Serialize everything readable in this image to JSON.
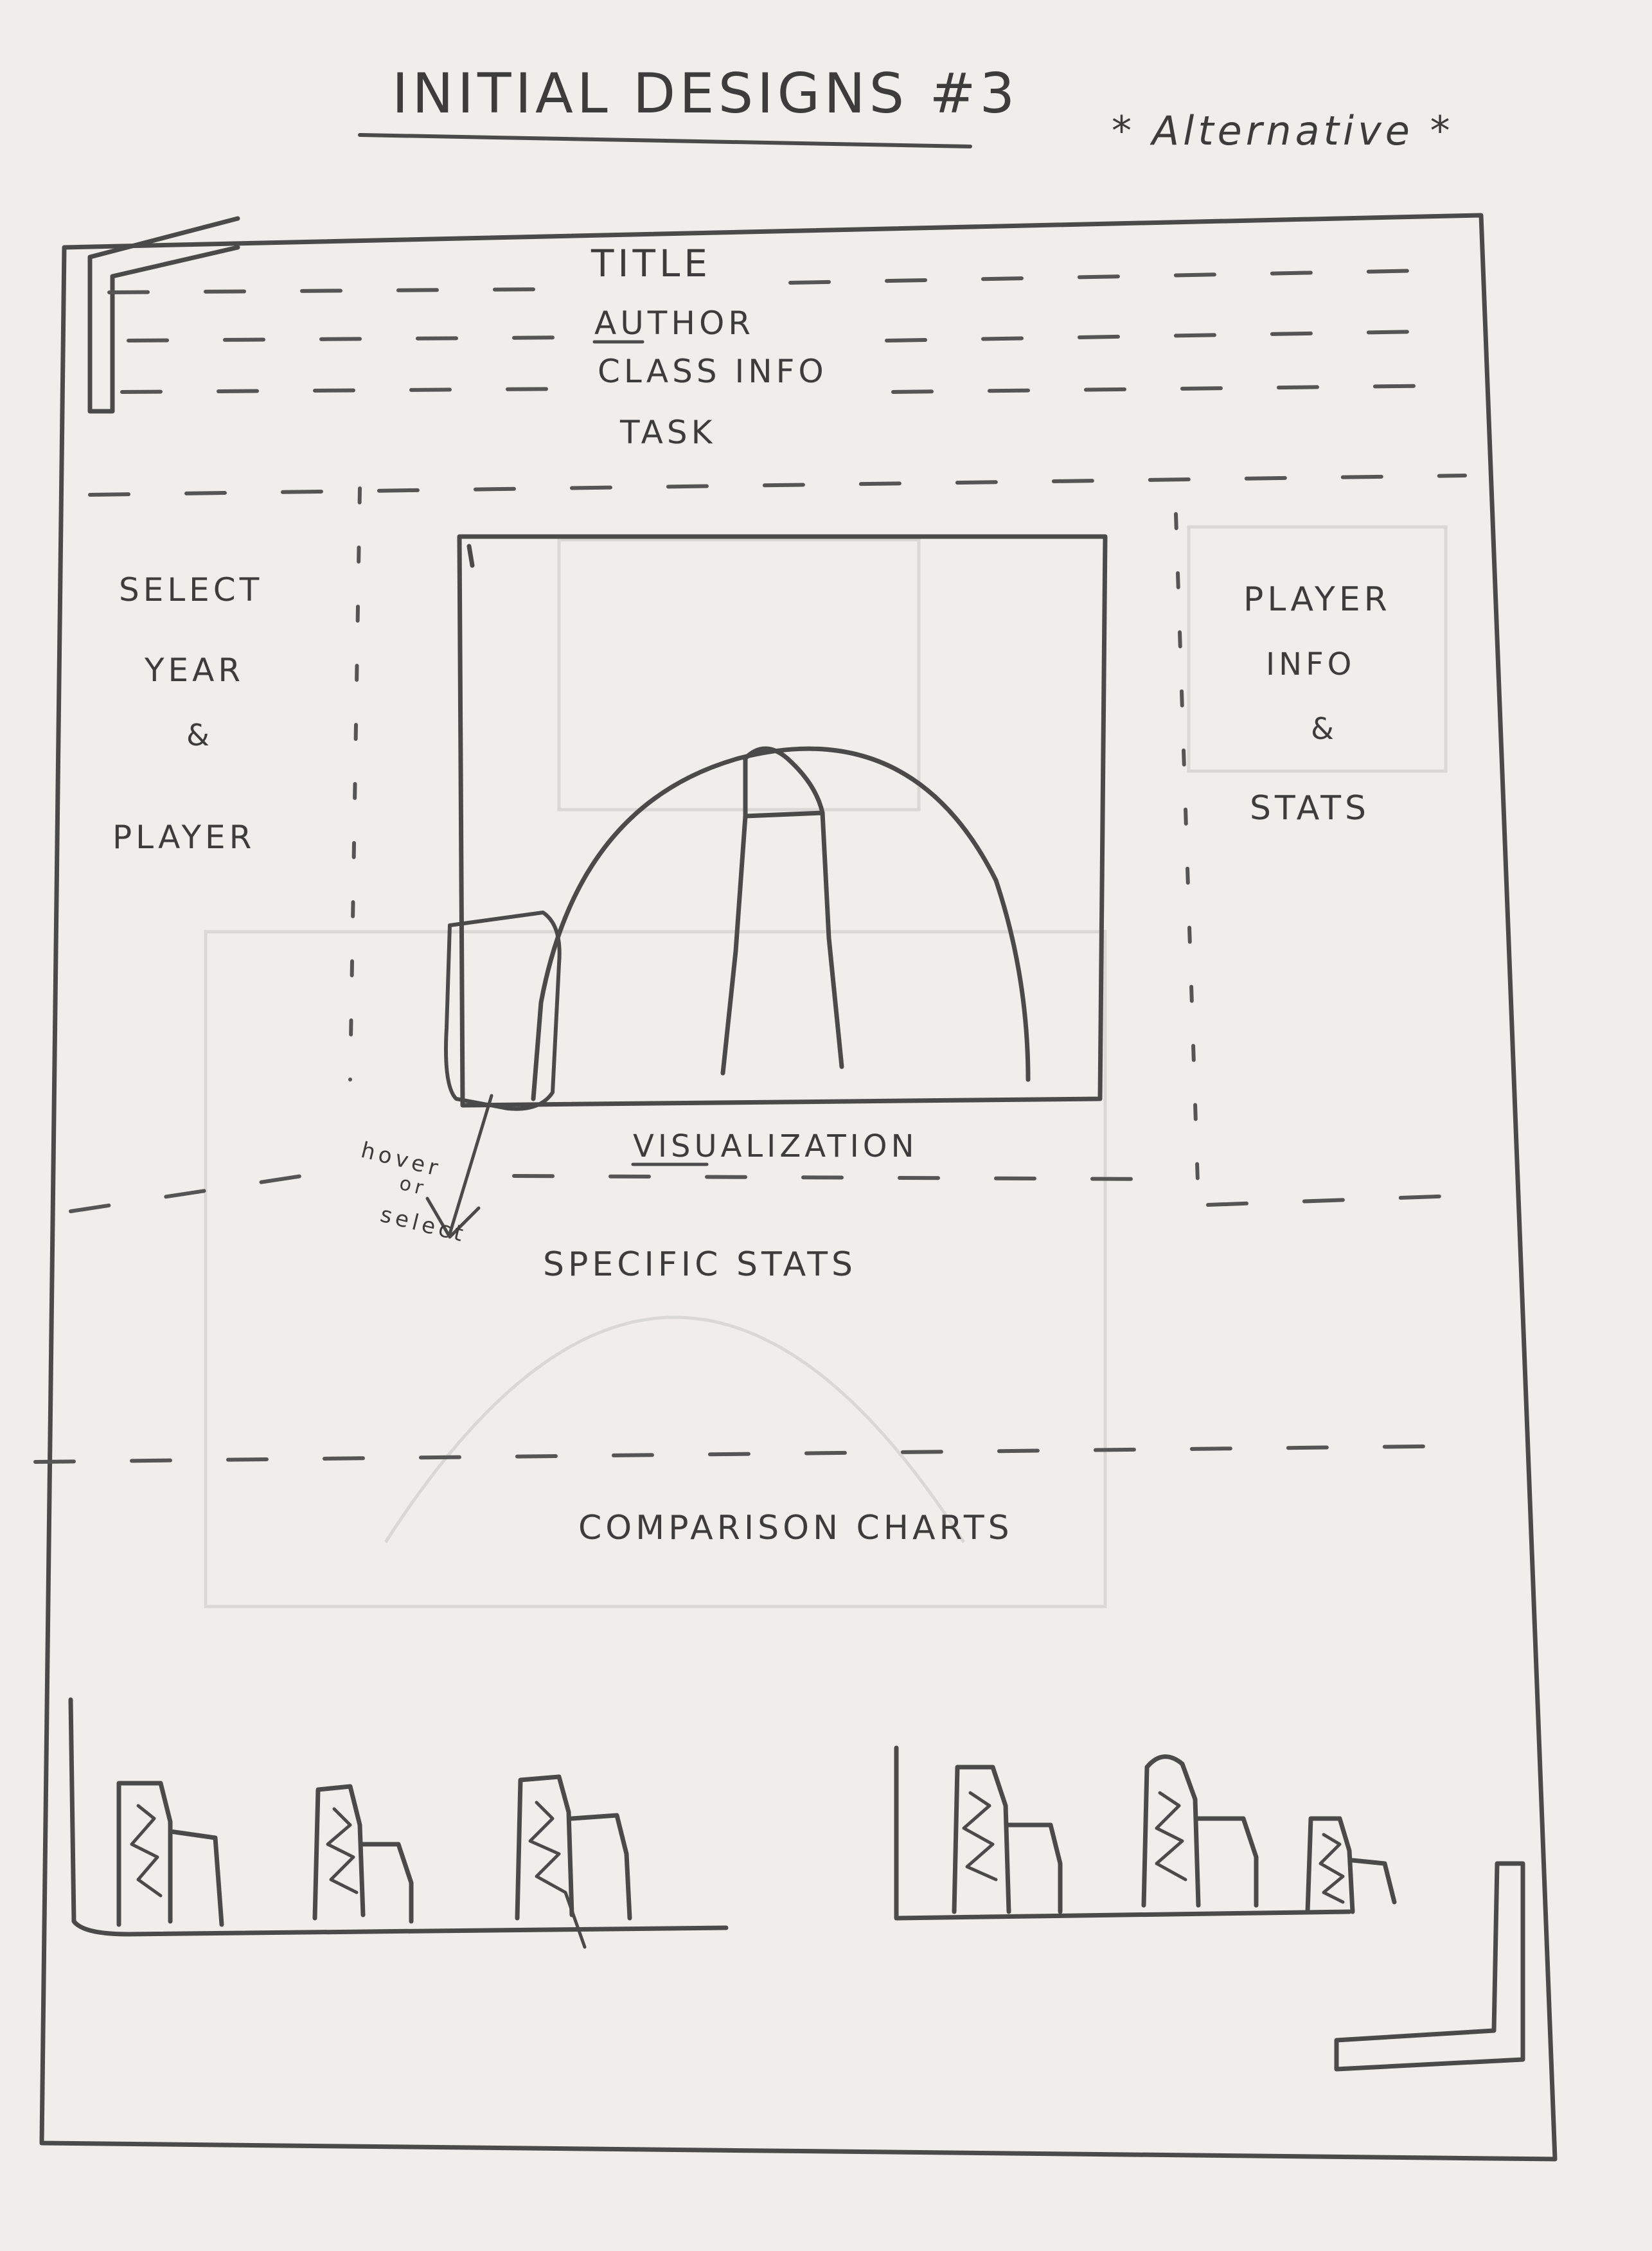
{
  "sheet": {
    "heading": "INITIAL DESIGNS #3",
    "note": "* Alternative *"
  },
  "header": {
    "title": "TITLE",
    "author": "AUTHOR",
    "class_info": "CLASS INFO",
    "task": "TASK"
  },
  "left_panel": {
    "line1": "SELECT",
    "line2": "YEAR",
    "line3": "&",
    "line4": "PLAYER"
  },
  "right_panel": {
    "line1": "PLAYER",
    "line2": "INFO",
    "line3": "&",
    "line4": "STATS"
  },
  "visualization": {
    "label": "VISUALIZATION",
    "annotation_line1": "hover",
    "annotation_line2": "or",
    "annotation_line3": "select"
  },
  "sections": {
    "specific_stats": "SPECIFIC STATS",
    "comparison_charts": "COMPARISON CHARTS"
  }
}
